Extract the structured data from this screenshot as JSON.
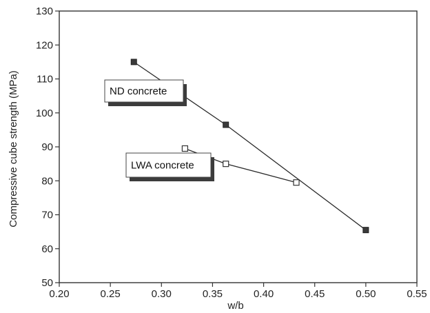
{
  "chart_data": {
    "type": "line",
    "title": "",
    "xlabel": "w/b",
    "ylabel": "Compressive cube strength (MPa)",
    "xlim": [
      0.2,
      0.55
    ],
    "ylim": [
      50,
      130
    ],
    "x_ticks": [
      "0.20",
      "0.25",
      "0.30",
      "0.35",
      "0.40",
      "0.45",
      "0.50",
      "0.55"
    ],
    "y_ticks": [
      "50",
      "60",
      "70",
      "80",
      "90",
      "100",
      "110",
      "120",
      "130"
    ],
    "grid": false,
    "series": [
      {
        "name": "ND concrete",
        "marker": "filled-square",
        "color": "#2a2a2a",
        "x": [
          0.273,
          0.363,
          0.5
        ],
        "y": [
          115,
          96.5,
          65.5
        ]
      },
      {
        "name": "LWA concrete",
        "marker": "open-square",
        "color": "#2a2a2a",
        "x": [
          0.323,
          0.363,
          0.432
        ],
        "y": [
          89.5,
          85,
          79.5
        ]
      }
    ],
    "annotations": [
      {
        "text": "ND concrete",
        "series": 0
      },
      {
        "text": "LWA concrete",
        "series": 1
      }
    ]
  }
}
